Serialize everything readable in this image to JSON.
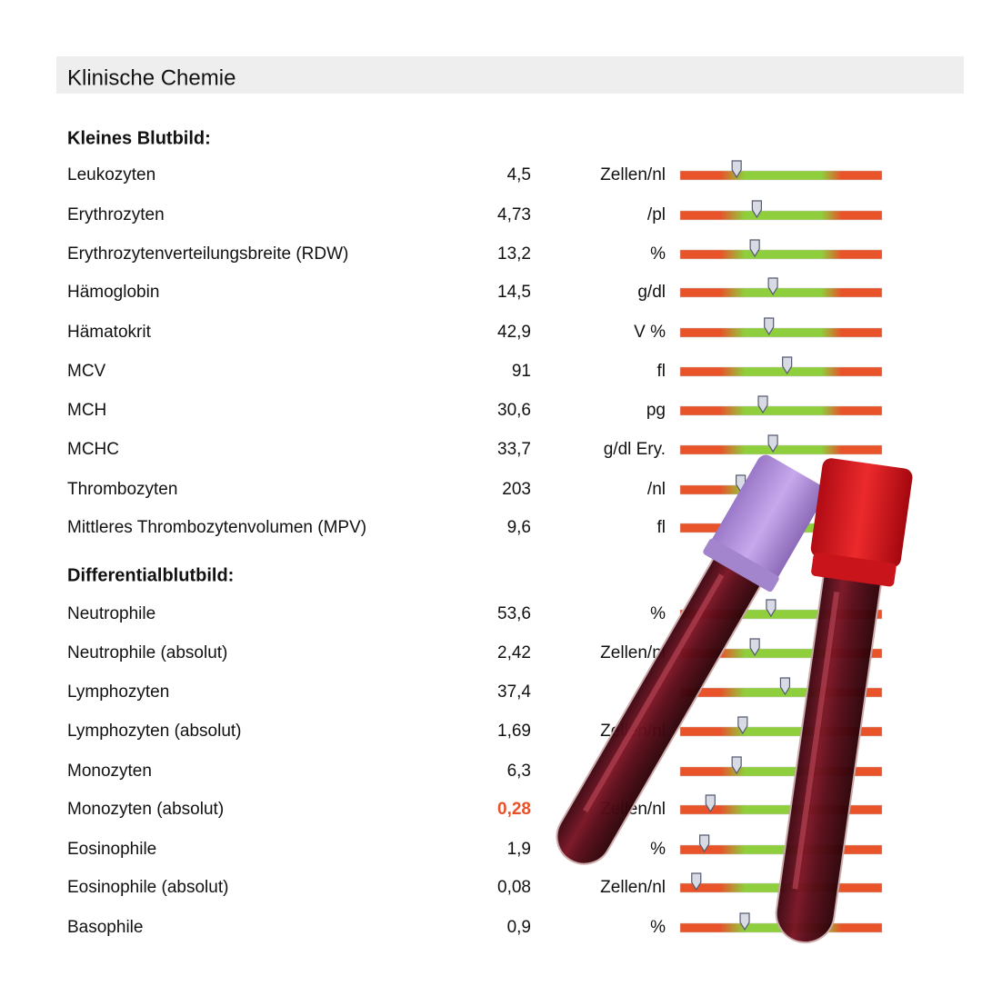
{
  "title": "Klinische Chemie",
  "sections": [
    {
      "heading": "Kleines Blutbild:",
      "rows": [
        {
          "name": "Leukozyten",
          "value": "4,5",
          "unit": "Zellen/nl"
        },
        {
          "name": "Erythrozyten",
          "value": "4,73",
          "unit": "/pl"
        },
        {
          "name": "Erythrozytenverteilungsbreite (RDW)",
          "value": "13,2",
          "unit": "%"
        },
        {
          "name": "Hämoglobin",
          "value": "14,5",
          "unit": "g/dl"
        },
        {
          "name": "Hämatokrit",
          "value": "42,9",
          "unit": "V %"
        },
        {
          "name": "MCV",
          "value": "91",
          "unit": "fl"
        },
        {
          "name": "MCH",
          "value": "30,6",
          "unit": "pg"
        },
        {
          "name": "MCHC",
          "value": "33,7",
          "unit": "g/dl Ery."
        },
        {
          "name": "Thrombozyten",
          "value": "203",
          "unit": "/nl"
        },
        {
          "name": "Mittleres Thrombozytenvolumen (MPV)",
          "value": "9,6",
          "unit": "fl"
        }
      ]
    },
    {
      "heading": "Differentialblutbild:",
      "rows": [
        {
          "name": "Neutrophile",
          "value": "53,6",
          "unit": "%"
        },
        {
          "name": "Neutrophile (absolut)",
          "value": "2,42",
          "unit": "Zellen/nl"
        },
        {
          "name": "Lymphozyten",
          "value": "37,4",
          "unit": null
        },
        {
          "name": "Lymphozyten (absolut)",
          "value": "1,69",
          "unit": "Zellen/nl"
        },
        {
          "name": "Monozyten",
          "value": "6,3",
          "unit": null
        },
        {
          "name": "Monozyten (absolut)",
          "value": "0,28",
          "unit": "Zellen/nl"
        },
        {
          "name": "Eosinophile",
          "value": "1,9",
          "unit": "%"
        },
        {
          "name": "Eosinophile (absolut)",
          "value": "0,08",
          "unit": "Zellen/nl"
        },
        {
          "name": "Basophile",
          "value": "0,9",
          "unit": "%"
        }
      ]
    }
  ]
}
